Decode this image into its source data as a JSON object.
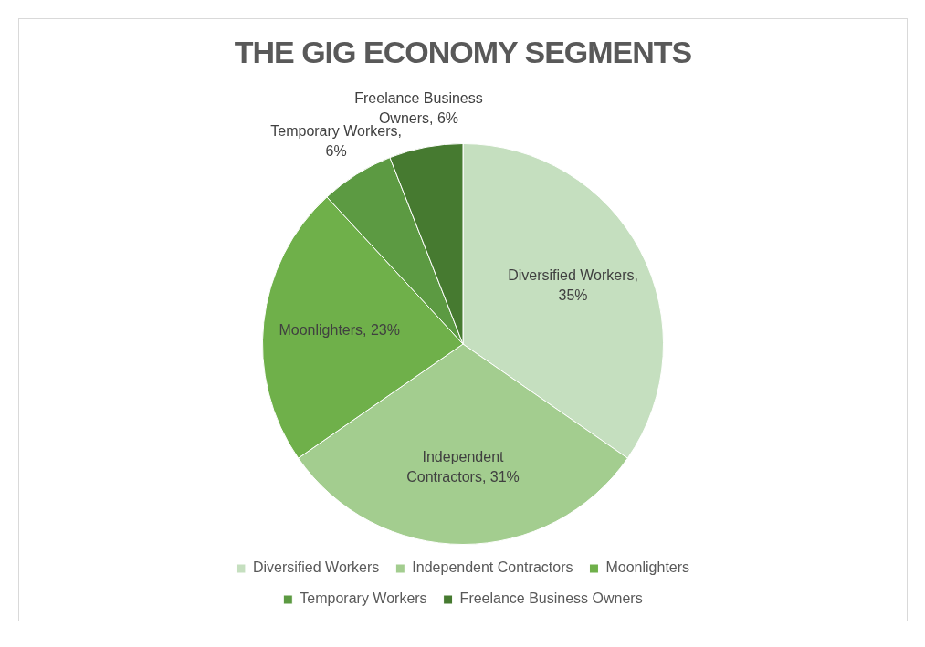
{
  "chart_data": {
    "type": "pie",
    "title": "THE GIG ECONOMY SEGMENTS",
    "categories": [
      "Diversified Workers",
      "Independent Contractors",
      "Moonlighters",
      "Temporary Workers",
      "Freelance Business Owners"
    ],
    "values": [
      35,
      31,
      23,
      6,
      6
    ],
    "value_labels": [
      "Diversified Workers, 35%",
      "Independent Contractors, 31%",
      "Moonlighters, 23%",
      "Temporary Workers, 6%",
      "Freelance Business Owners, 6%"
    ],
    "colors": [
      "#c5dfbf",
      "#a3cd8f",
      "#6fb04a",
      "#5c9a42",
      "#467a30"
    ],
    "legend": "bottom"
  }
}
